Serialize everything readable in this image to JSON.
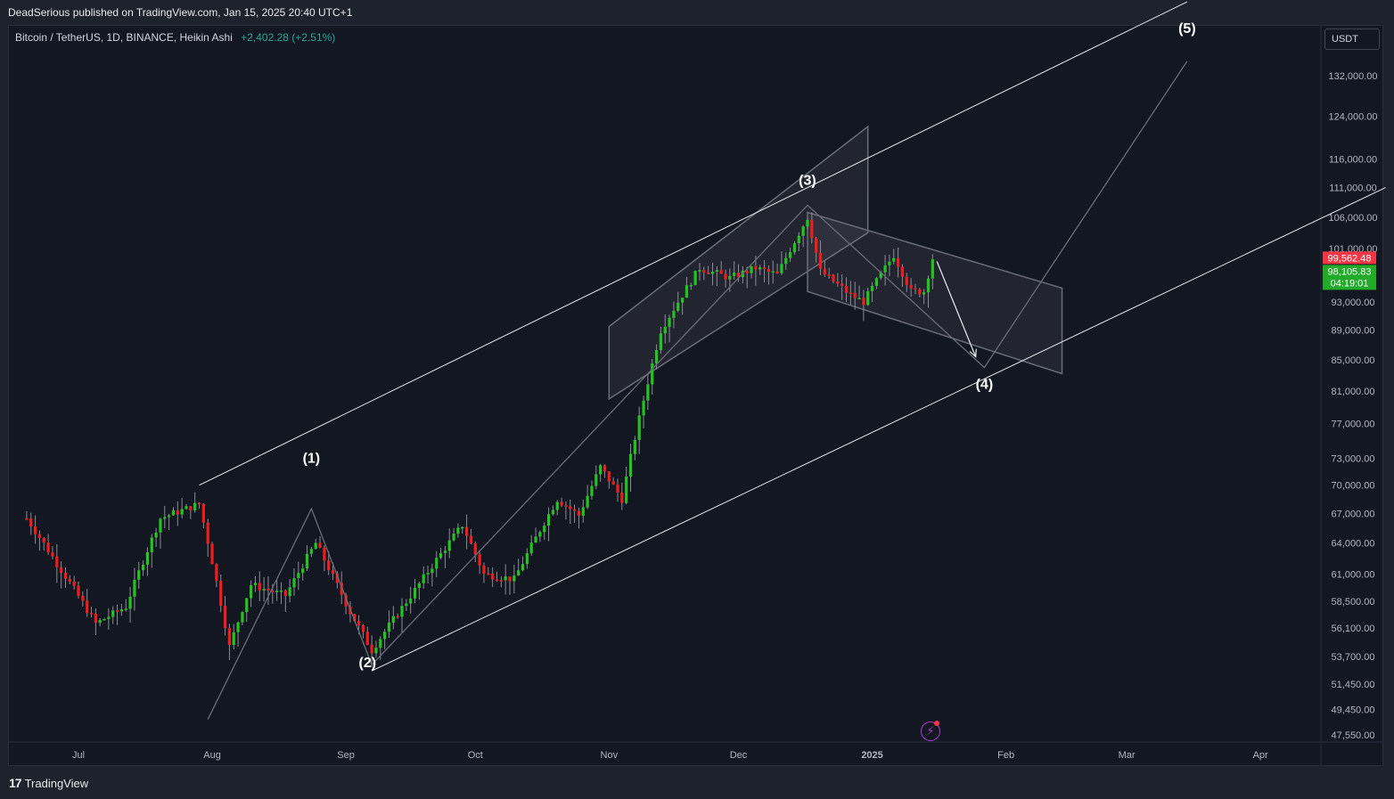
{
  "header": {
    "publisher": "DeadSerious published on TradingView.com, Jan 15, 2025 20:40 UTC+1"
  },
  "symbol": {
    "title": "Bitcoin / TetherUS, 1D, BINANCE, Heikin Ashi",
    "change": "+2,402.28 (+2.51%)"
  },
  "currency": "USDT",
  "footer": {
    "brand": "TradingView",
    "logo": "17"
  },
  "icons": {
    "bolt": "lightning-icon"
  },
  "colors": {
    "background": "#131722",
    "up": "#22c51e",
    "down": "#f21c1c",
    "text": "#d1d4dc",
    "price_label_red": "#f23645",
    "price_label_green": "#22ab29"
  },
  "chart_data": {
    "type": "candlestick",
    "style": "Heikin Ashi",
    "scale": "log",
    "x_ticks": [
      "Jul",
      "Aug",
      "Sep",
      "Oct",
      "Nov",
      "Dec",
      "2025",
      "Feb",
      "Mar",
      "Apr"
    ],
    "y_ticks": [
      "132,000.00",
      "124,000.00",
      "116,000.00",
      "111,000.00",
      "106,000.00",
      "101,000.00",
      "93,000.00",
      "89,000.00",
      "85,000.00",
      "81,000.00",
      "77,000.00",
      "73,000.00",
      "70,000.00",
      "67,000.00",
      "64,000.00",
      "61,000.00",
      "58,500.00",
      "56,100.00",
      "53,700.00",
      "51,450.00",
      "49,450.00",
      "47,550.00"
    ],
    "price_labels": [
      {
        "text": "99,562.48",
        "value": 99562.48,
        "color": "#f23645"
      },
      {
        "text": "98,105.83",
        "value": 98105.83,
        "color": "#22ab29"
      },
      {
        "text": "04:19:01",
        "color": "#22ab29"
      }
    ],
    "wave_labels": [
      {
        "text": "(1)",
        "date": "2024-08-24",
        "price": 72500
      },
      {
        "text": "(2)",
        "date": "2024-09-06",
        "price": 52800
      },
      {
        "text": "(3)",
        "date": "2024-12-17",
        "price": 111500
      },
      {
        "text": "(4)",
        "date": "2025-01-27",
        "price": 81300
      },
      {
        "text": "(5)",
        "date": "2025-03-15",
        "price": 141000
      }
    ],
    "candle_anchors": [
      {
        "date": "2024-06-19",
        "price": 66500
      },
      {
        "date": "2024-06-26",
        "price": 62000
      },
      {
        "date": "2024-07-05",
        "price": 56500
      },
      {
        "date": "2024-07-12",
        "price": 58000
      },
      {
        "date": "2024-07-20",
        "price": 66500
      },
      {
        "date": "2024-07-29",
        "price": 68000
      },
      {
        "date": "2024-08-05",
        "price": 54500
      },
      {
        "date": "2024-08-10",
        "price": 60000
      },
      {
        "date": "2024-08-18",
        "price": 59000
      },
      {
        "date": "2024-08-25",
        "price": 64000
      },
      {
        "date": "2024-09-02",
        "price": 57500
      },
      {
        "date": "2024-09-07",
        "price": 54200
      },
      {
        "date": "2024-09-17",
        "price": 59500
      },
      {
        "date": "2024-09-28",
        "price": 65800
      },
      {
        "date": "2024-10-03",
        "price": 61000
      },
      {
        "date": "2024-10-10",
        "price": 60500
      },
      {
        "date": "2024-10-20",
        "price": 68500
      },
      {
        "date": "2024-10-25",
        "price": 66800
      },
      {
        "date": "2024-10-30",
        "price": 72000
      },
      {
        "date": "2024-11-04",
        "price": 68500
      },
      {
        "date": "2024-11-13",
        "price": 89000
      },
      {
        "date": "2024-11-22",
        "price": 98000
      },
      {
        "date": "2024-11-29",
        "price": 96500
      },
      {
        "date": "2024-12-05",
        "price": 98000
      },
      {
        "date": "2024-12-10",
        "price": 97000
      },
      {
        "date": "2024-12-17",
        "price": 106000
      },
      {
        "date": "2024-12-20",
        "price": 97500
      },
      {
        "date": "2024-12-27",
        "price": 94000
      },
      {
        "date": "2024-12-30",
        "price": 93000
      },
      {
        "date": "2025-01-06",
        "price": 100000
      },
      {
        "date": "2025-01-10",
        "price": 94500
      },
      {
        "date": "2025-01-13",
        "price": 94500
      },
      {
        "date": "2025-01-15",
        "price": 99500
      }
    ],
    "channel_main": {
      "upper": [
        {
          "date": "2024-07-29",
          "price": 70000
        },
        {
          "date": "2025-03-15",
          "price": 148000
        }
      ],
      "lower": [
        {
          "date": "2024-09-07",
          "price": 52500
        },
        {
          "date": "2025-04-30",
          "price": 111000
        }
      ]
    },
    "flag_box_up": [
      {
        "date": "2024-11-01",
        "price": 89500
      },
      {
        "date": "2024-12-31",
        "price": 122000
      },
      {
        "date": "2024-12-31",
        "price": 103500
      },
      {
        "date": "2024-11-01",
        "price": 80000
      }
    ],
    "flag_box_down": [
      {
        "date": "2024-12-17",
        "price": 106800
      },
      {
        "date": "2025-02-14",
        "price": 95000
      },
      {
        "date": "2025-02-14",
        "price": 83200
      },
      {
        "date": "2024-12-17",
        "price": 94500
      }
    ],
    "wave_path": [
      {
        "date": "2024-07-31",
        "price": 48700
      },
      {
        "date": "2024-08-24",
        "price": 67500
      },
      {
        "date": "2024-09-07",
        "price": 53000
      },
      {
        "date": "2024-12-17",
        "price": 108000
      },
      {
        "date": "2025-01-27",
        "price": 84000
      },
      {
        "date": "2025-03-15",
        "price": 135000
      }
    ],
    "arrow": {
      "from": {
        "date": "2025-01-16",
        "price": 99000
      },
      "to": {
        "date": "2025-01-25",
        "price": 85400
      }
    }
  }
}
